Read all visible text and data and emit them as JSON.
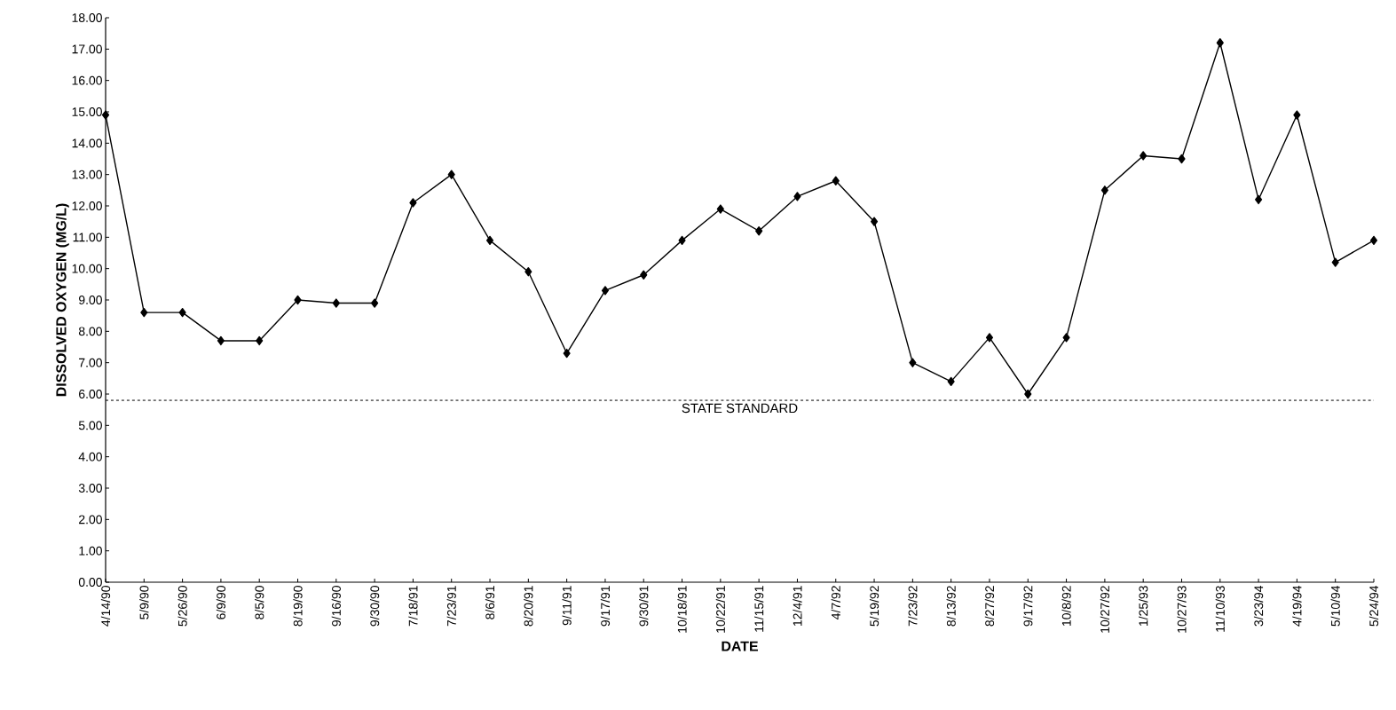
{
  "chart_data": {
    "type": "line",
    "xlabel": "DATE",
    "ylabel": "DISSOLVED OXYGEN (MG/L)",
    "categories": [
      "4/14/90",
      "5/9/90",
      "5/26/90",
      "6/9/90",
      "8/5/90",
      "8/19/90",
      "9/16/90",
      "9/30/90",
      "7/18/91",
      "7/23/91",
      "8/6/91",
      "8/20/91",
      "9/11/91",
      "9/17/91",
      "9/30/91",
      "10/18/91",
      "10/22/91",
      "11/15/91",
      "12/4/91",
      "4/7/92",
      "5/19/92",
      "7/23/92",
      "8/13/92",
      "8/27/92",
      "9/17/92",
      "10/8/92",
      "10/27/92",
      "1/25/93",
      "10/27/93",
      "11/10/93",
      "3/23/94",
      "4/19/94",
      "5/10/94",
      "5/24/94"
    ],
    "series": [
      {
        "color": "#000000",
        "values": [
          14.9,
          8.6,
          8.6,
          7.7,
          7.7,
          9.0,
          8.9,
          8.9,
          12.1,
          13.0,
          10.9,
          9.9,
          7.3,
          9.3,
          9.8,
          10.9,
          11.9,
          11.2,
          12.3,
          12.8,
          11.5,
          7.0,
          6.4,
          7.8,
          6.0,
          7.8,
          12.5,
          13.6,
          13.5,
          17.2,
          12.2,
          14.9,
          10.2,
          10.9
        ]
      }
    ],
    "ylim": [
      0,
      18
    ],
    "yticks": [
      {
        "value": 0,
        "label": "0.00"
      },
      {
        "value": 1,
        "label": "1.00"
      },
      {
        "value": 2,
        "label": "2.00"
      },
      {
        "value": 3,
        "label": "3.00"
      },
      {
        "value": 4,
        "label": "4.00"
      },
      {
        "value": 5,
        "label": "5.00"
      },
      {
        "value": 6,
        "label": "6.00"
      },
      {
        "value": 7,
        "label": "7.00"
      },
      {
        "value": 8,
        "label": "8.00"
      },
      {
        "value": 9,
        "label": "9.00"
      },
      {
        "value": 10,
        "label": "10.00"
      },
      {
        "value": 11,
        "label": "11.00"
      },
      {
        "value": 12,
        "label": "12.00"
      },
      {
        "value": 13,
        "label": "13.00"
      },
      {
        "value": 14,
        "label": "14.00"
      },
      {
        "value": 15,
        "label": "15.00"
      },
      {
        "value": 16,
        "label": "16.00"
      },
      {
        "value": 17,
        "label": "17.00"
      },
      {
        "value": 18,
        "label": "18.00"
      }
    ],
    "ref_lines": [
      {
        "axis": "y",
        "value": 5.8,
        "label": "STATE STANDARD",
        "line_style": "dashed",
        "color": "#000000"
      }
    ],
    "marker": "diamond",
    "line_style": "solid",
    "grid": false
  }
}
